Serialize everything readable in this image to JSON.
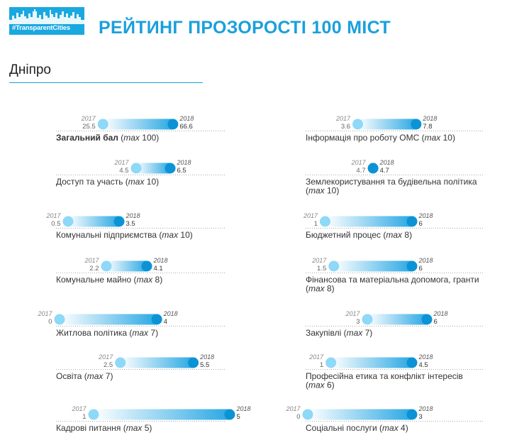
{
  "header": {
    "logo_text": "#TransparentCities",
    "title": "РЕЙТИНГ ПРОЗОРОСТІ 100 МІСТ"
  },
  "city": "Дніпро",
  "colors": {
    "accent": "#1aa0dc",
    "start_dot": "#8ed8f8",
    "end_dot": "#0b93d6",
    "bar_start": "#ffffff",
    "bar_end": "#2aa8e4"
  },
  "chart_data": {
    "type": "dumbbell",
    "year_start": "2017",
    "year_end": "2018",
    "max_word": "max",
    "items": [
      {
        "label": "Загальний бал",
        "max": 100,
        "v2017": 25.5,
        "v2018": 66.6,
        "l2017": "25.5",
        "l2018": "66.6",
        "bold": true
      },
      {
        "label": "Доступ та участь",
        "max": 10,
        "v2017": 4.5,
        "v2018": 6.5,
        "l2017": "4.5",
        "l2018": "6.5"
      },
      {
        "label": "Комунальні підприємства",
        "max": 10,
        "v2017": 0.5,
        "v2018": 3.5,
        "l2017": "0.5",
        "l2018": "3.5"
      },
      {
        "label": "Комунальне майно",
        "max": 8,
        "v2017": 2.2,
        "v2018": 4.1,
        "l2017": "2.2",
        "l2018": "4.1"
      },
      {
        "label": "Житлова політика",
        "max": 7,
        "v2017": 0,
        "v2018": 4,
        "l2017": "0",
        "l2018": "4"
      },
      {
        "label": "Освіта",
        "max": 7,
        "v2017": 2.5,
        "v2018": 5.5,
        "l2017": "2.5",
        "l2018": "5.5"
      },
      {
        "label": "Кадрові питання",
        "max": 5,
        "v2017": 1,
        "v2018": 5,
        "l2017": "1",
        "l2018": "5"
      },
      {
        "label": "Інформація про роботу ОМС",
        "max": 10,
        "v2017": 3.6,
        "v2018": 7.8,
        "l2017": "3.6",
        "l2018": "7.8"
      },
      {
        "label": "Землекористування та будівельна політика",
        "max": 10,
        "v2017": 4.7,
        "v2018": 4.7,
        "l2017": "4.7",
        "l2018": "4.7"
      },
      {
        "label": "Бюджетний процес",
        "max": 8,
        "v2017": 1,
        "v2018": 6,
        "l2017": "1",
        "l2018": "6"
      },
      {
        "label": "Фінансова та матеріальна допомога, гранти",
        "max": 8,
        "v2017": 1.5,
        "v2018": 6,
        "l2017": "1.5",
        "l2018": "6"
      },
      {
        "label": "Закупівлі",
        "max": 7,
        "v2017": 3,
        "v2018": 6,
        "l2017": "3",
        "l2018": "6"
      },
      {
        "label": "Професійна етика та конфлікт інтересів",
        "max": 6,
        "v2017": 1,
        "v2018": 4.5,
        "l2017": "1",
        "l2018": "4.5"
      },
      {
        "label": "Соціальні послуги",
        "max": 4,
        "v2017": 0,
        "v2018": 3,
        "l2017": "0",
        "l2018": "3"
      }
    ]
  }
}
